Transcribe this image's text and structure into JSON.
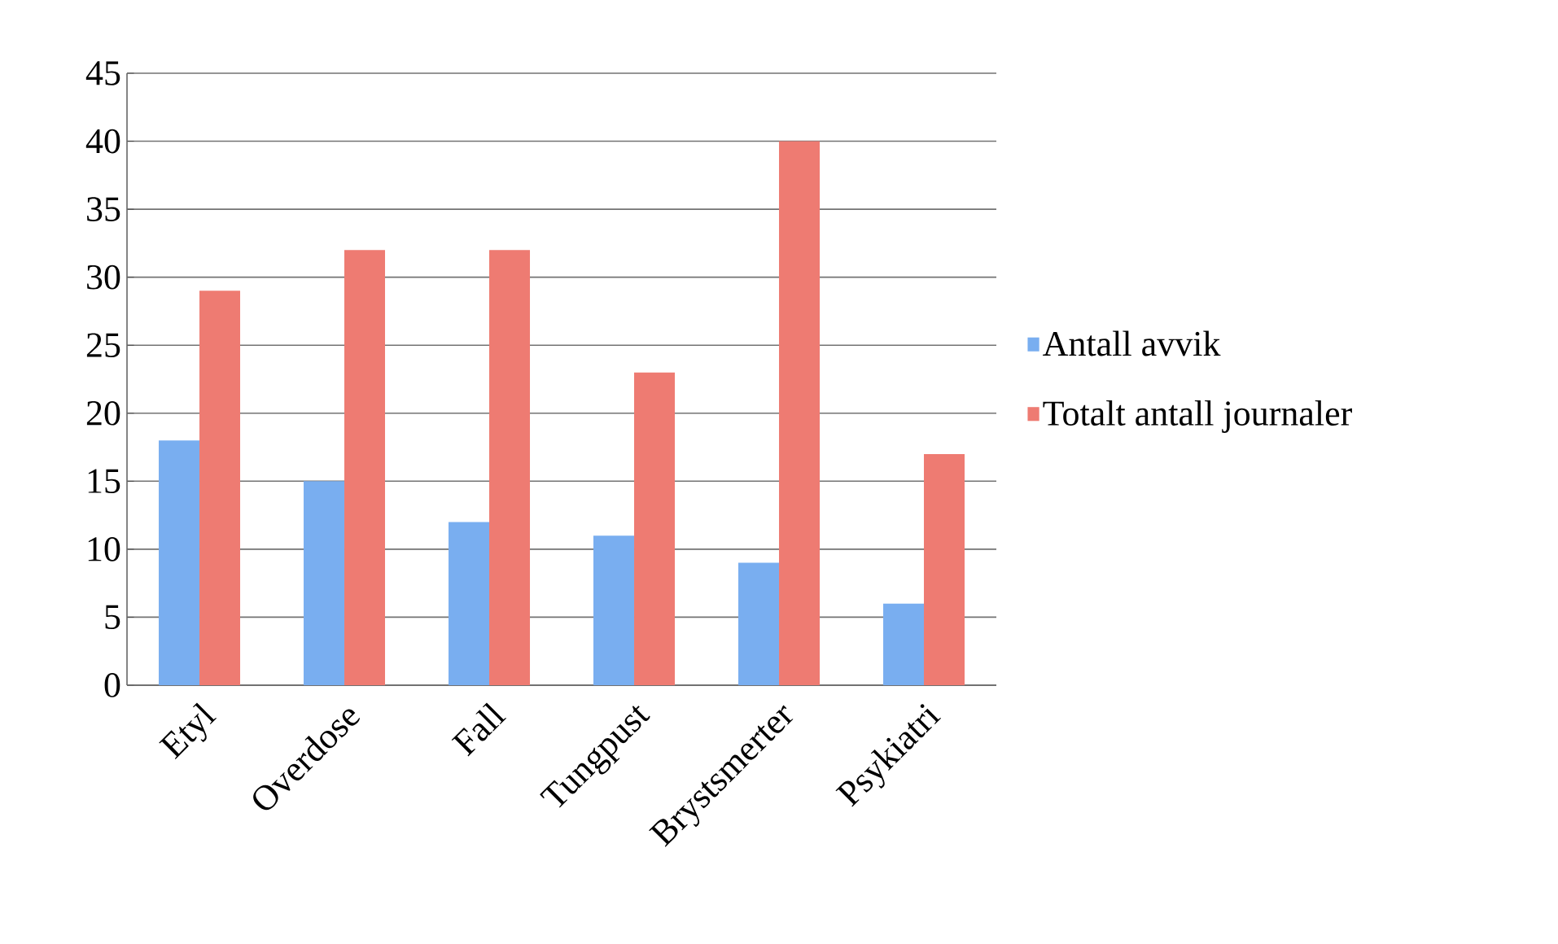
{
  "chart_data": {
    "type": "bar",
    "categories": [
      "Etyl",
      "Overdose",
      "Fall",
      "Tungpust",
      "Brystsmerter",
      "Psykiatri"
    ],
    "series": [
      {
        "name": "Antall avvik",
        "color": "#79aef0",
        "values": [
          18,
          15,
          12,
          11,
          9,
          6
        ]
      },
      {
        "name": "Totalt antall journaler",
        "color": "#ee7b72",
        "values": [
          29,
          32,
          32,
          23,
          40,
          17
        ]
      }
    ],
    "ylim": [
      0,
      45
    ],
    "yticks": [
      0,
      5,
      10,
      15,
      20,
      25,
      30,
      35,
      40,
      45
    ],
    "grid": "y",
    "legend": "right"
  }
}
